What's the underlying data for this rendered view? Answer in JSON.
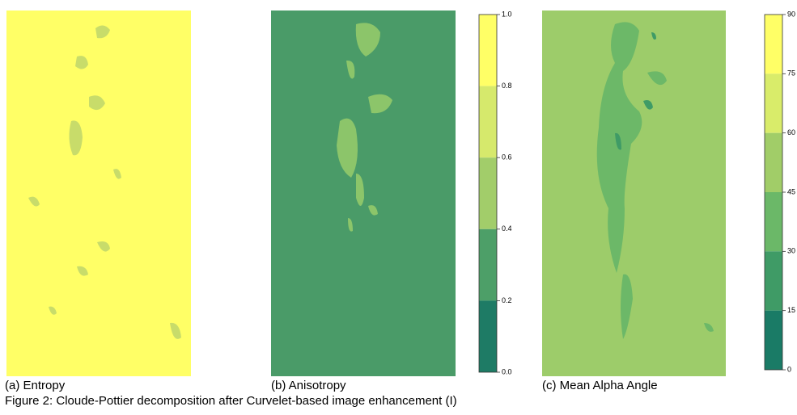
{
  "panels": [
    {
      "caption": "(a) Entropy"
    },
    {
      "caption": "(b) Anisotropy",
      "colorbar": {
        "ticks": [
          "1.0",
          "0.8",
          "0.6",
          "0.4",
          "0.2",
          "0.0"
        ],
        "colors": [
          "#ffff66",
          "#d6e96c",
          "#a2cd6a",
          "#4d9f68",
          "#1e7b65"
        ]
      }
    },
    {
      "caption": "(c) Mean Alpha Angle",
      "colorbar": {
        "ticks": [
          "90",
          "75",
          "60",
          "45",
          "30",
          "15",
          "0"
        ],
        "colors": [
          "#ffff66",
          "#d9ec6a",
          "#a1cd68",
          "#6bb868",
          "#3f9b66",
          "#1a7b66"
        ]
      }
    }
  ],
  "figure_caption": "Figure 2: Cloude-Pottier decomposition after Curvelet-based image enhancement (I)"
}
